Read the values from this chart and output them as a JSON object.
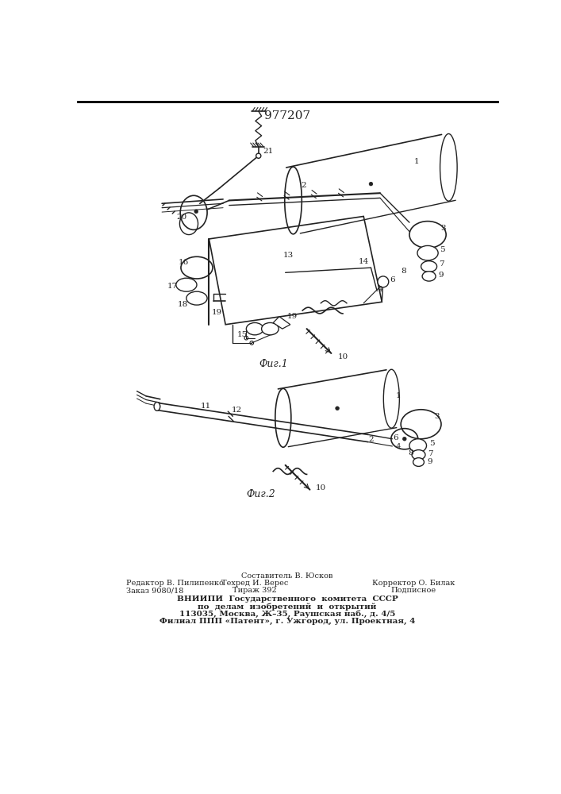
{
  "title": "977207",
  "fig1_label": "Фиг.1",
  "fig2_label": "Фиг.2",
  "footer_composer": "Составитель В. Юсков",
  "footer_editor": "Редактор В. Пилипенко",
  "footer_order": "Заказ 9080/18",
  "footer_tech": "Техред И. Верес",
  "footer_print": "Тираж 392",
  "footer_corrector": "Корректор О. Билак",
  "footer_signed": "Подписное",
  "footer_vniiipi": "ВНИИПИ  Государственного  комитета  СССР",
  "footer_vniiipi2": "по  делам  изобретений  и  открытий",
  "footer_addr1": "113035, Москва, Ж–35, Раушская наб., д. 4/5",
  "footer_addr2": "Филиал ППП «Патент», г. Ужгород, ул. Проектная, 4",
  "bg_color": "#ffffff",
  "line_color": "#222222",
  "border_color": "#000000"
}
